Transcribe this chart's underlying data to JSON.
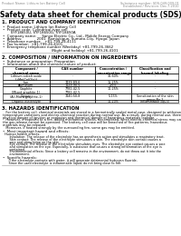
{
  "header_left": "Product Name: Lithium Ion Battery Cell",
  "header_right_1": "Substance number: SDS-049-009-01",
  "header_right_2": "Established / Revision: Dec.7.2010",
  "main_title": "Safety data sheet for chemical products (SDS)",
  "s1_title": "1. PRODUCT AND COMPANY IDENTIFICATION",
  "s1_lines": [
    "•  Product name: Lithium Ion Battery Cell",
    "•  Product code: Cylindrical-type cell",
    "       SYF18650U, SYF18650G, SYF18650A",
    "•  Company name:     Sanyo Electric Co., Ltd., Mobile Energy Company",
    "•  Address:             2001  Kamiukigun, Sumoto-City, Hyogo, Japan",
    "•  Telephone number:   +81-799-24-4111",
    "•  Fax number:  +81-799-26-4101",
    "•  Emergency telephone number (Weekday) +81-799-26-3662",
    "                                           (Night and holiday) +81-799-26-4101"
  ],
  "s2_title": "2. COMPOSITION / INFORMATION ON INGREDIENTS",
  "s2_lines": [
    "•  Substance or preparation: Preparation",
    "•  Information about the chemical nature of product:"
  ],
  "col_names": [
    "Component /\nchemical name",
    "CAS number",
    "Concentration /\nConcentration range",
    "Classification and\nhazard labeling"
  ],
  "col_header_name": "Information about the chemical nature of product",
  "table_rows": [
    [
      "Lithium cobalt oxide\n(LiMn(Co)O(x))",
      "-",
      "30-60%",
      "-"
    ],
    [
      "Iron",
      "7439-89-6",
      "15-25%",
      "-"
    ],
    [
      "Aluminum",
      "7429-90-5",
      "2-6%",
      "-"
    ],
    [
      "Graphite\n(Mixed graphite-1)\n(All-Micro graphite-1)",
      "7782-42-5\n7782-42-5",
      "10-25%",
      "-"
    ],
    [
      "Copper",
      "7440-50-8",
      "5-15%",
      "Sensitization of the skin\ngroup No.2"
    ],
    [
      "Organic electrolyte",
      "-",
      "10-20%",
      "Inflammable liquid"
    ]
  ],
  "s3_title": "3. HAZARDS IDENTIFICATION",
  "s3_para": "   For the battery cell, chemical materials are stored in a hermetically sealed metal case, designed to withstand\ntemperature variations and electro-chemical reaction during normal use. As a result, during normal use, there is no\nphysical danger of ignition or explosion and thermical danger of hazardous materials leakage.\n   However, if exposed to a fire, added mechanical shocks, decomposed, when electro-chemical stress may cause\nthe gas release cannot be operated. The battery cell case will be breached of fire-patterns, hazardous\nmaterials may be released.\n   Moreover, if heated strongly by the surrounding fire, some gas may be emitted.",
  "s3_bullet1": "•  Most important hazard and effects:",
  "s3_health": "Human health effects:",
  "s3_health_lines": [
    "    Inhalation: The release of the electrolyte has an anesthesia action and stimulates a respiratory tract.",
    "    Skin contact: The release of the electrolyte stimulates a skin. The electrolyte skin contact causes a",
    "    sore and stimulation on the skin.",
    "    Eye contact: The release of the electrolyte stimulates eyes. The electrolyte eye contact causes a sore",
    "    and stimulation on the eye. Especially, a substance that causes a strong inflammation of the eye is",
    "    contained.",
    "    Environmental effects: Since a battery cell remains in the environment, do not throw out it into the",
    "    environment."
  ],
  "s3_bullet2": "•  Specific hazards:",
  "s3_specific_lines": [
    "    If the electrolyte contacts with water, it will generate detrimental hydrogen fluoride.",
    "    Since the used electrolyte is inflammable liquid, do not bring close to fire."
  ],
  "bg_color": "#ffffff"
}
